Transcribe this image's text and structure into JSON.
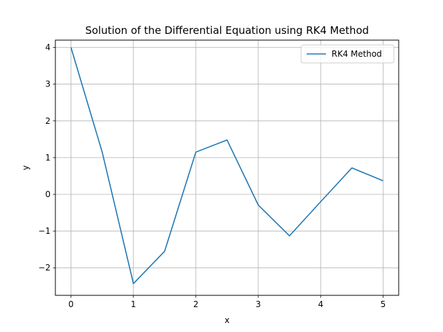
{
  "chart_data": {
    "type": "line",
    "title": "Solution of the Differential Equation using RK4 Method",
    "xlabel": "x",
    "ylabel": "y",
    "xlim": [
      -0.25,
      5.25
    ],
    "ylim": [
      -2.75,
      4.2
    ],
    "xticks": [
      0,
      1,
      2,
      3,
      4,
      5
    ],
    "xtick_labels": [
      "0",
      "1",
      "2",
      "3",
      "4",
      "5"
    ],
    "yticks": [
      -2,
      -1,
      0,
      1,
      2,
      3,
      4
    ],
    "ytick_labels": [
      "−2",
      "−1",
      "0",
      "1",
      "2",
      "3",
      "4"
    ],
    "grid": true,
    "legend_position": "top-right",
    "series": [
      {
        "name": "RK4 Method",
        "color": "#1f77b4",
        "x": [
          0,
          0.5,
          1,
          1.5,
          2,
          2.5,
          3,
          3.5,
          4,
          4.5,
          5
        ],
        "y": [
          4.0,
          1.15,
          -2.43,
          -1.55,
          1.15,
          1.48,
          -0.29,
          -1.13,
          -0.2,
          0.72,
          0.37
        ]
      }
    ]
  }
}
